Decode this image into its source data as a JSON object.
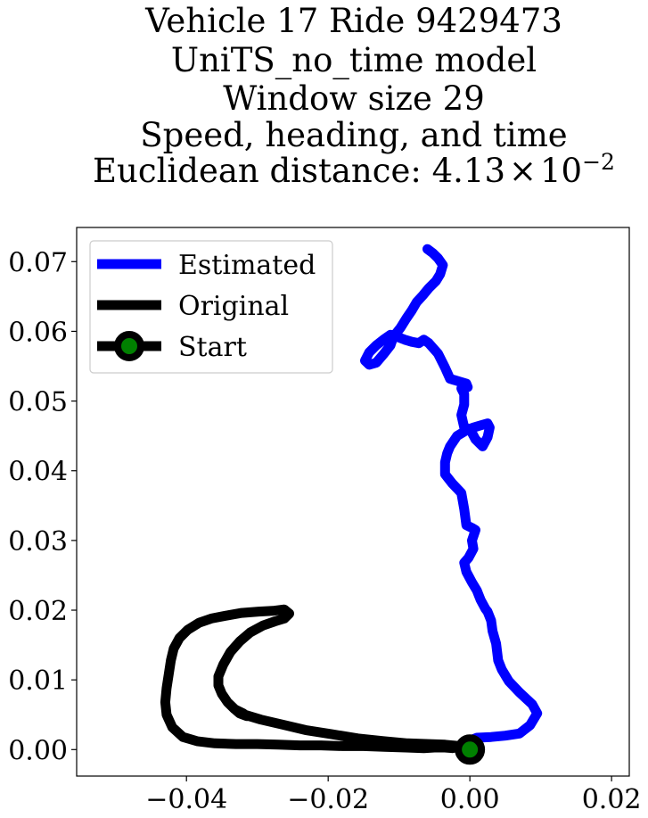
{
  "chart_data": {
    "type": "line",
    "title_lines": [
      "Vehicle 17 Ride 9429473",
      "UniTS_no_time model",
      "Window size 29",
      "Speed, heading, and time"
    ],
    "distance_label": {
      "prefix": "Euclidean distance: ",
      "mantissa": "4.13",
      "times": "×",
      "base": "10",
      "exponent": "−2"
    },
    "xlabel": "",
    "ylabel": "",
    "xlim": [
      -0.0555,
      0.0225
    ],
    "ylim": [
      -0.0038,
      0.0749
    ],
    "x_ticks": [
      -0.04,
      -0.02,
      0.0,
      0.02
    ],
    "x_tick_labels": [
      "−0.04",
      "−0.02",
      "0.00",
      "0.02"
    ],
    "y_ticks": [
      0.0,
      0.01,
      0.02,
      0.03,
      0.04,
      0.05,
      0.06,
      0.07
    ],
    "y_tick_labels": [
      "0.00",
      "0.01",
      "0.02",
      "0.03",
      "0.04",
      "0.05",
      "0.06",
      "0.07"
    ],
    "grid": false,
    "legend": {
      "placement": "top-left",
      "entries": [
        "Estimated",
        "Original",
        "Start"
      ]
    },
    "series": [
      {
        "name": "Estimated",
        "color": "#0000ff",
        "x": [
          0.0,
          0.001,
          0.003,
          0.005,
          0.007,
          0.0085,
          0.0095,
          0.0088,
          0.007,
          0.0055,
          0.0045,
          0.004,
          0.0037,
          0.0032,
          0.003,
          0.0025,
          0.0022,
          0.0015,
          0.001,
          0.0003,
          -0.0005,
          -0.0008,
          -0.0002,
          0.0005,
          0.0003,
          0.0008,
          0.0003,
          -0.0005,
          -0.0008,
          -0.0012,
          -0.0025,
          -0.0035,
          -0.0035,
          -0.0032,
          -0.0028,
          -0.0018,
          -0.0005,
          0.0005,
          0.0015,
          0.0025,
          0.0028,
          0.0025,
          0.0018,
          0.0008,
          0.0,
          -0.0008,
          -0.0012,
          -0.0008,
          -0.0008,
          -0.0012,
          -0.0003,
          -0.0005,
          -0.0015,
          -0.0028,
          -0.0035,
          -0.0045,
          -0.0058,
          -0.0065,
          -0.0072,
          -0.0082,
          -0.0092,
          -0.0102,
          -0.0112,
          -0.0122,
          -0.0132,
          -0.0142,
          -0.0148,
          -0.0142,
          -0.0132,
          -0.0122,
          -0.0112,
          -0.0108,
          -0.0098,
          -0.009,
          -0.0082,
          -0.0075,
          -0.0066,
          -0.0058,
          -0.0048,
          -0.0042,
          -0.0038,
          -0.0045,
          -0.0052,
          -0.006
        ],
        "y": [
          0.0013,
          0.0017,
          0.0018,
          0.002,
          0.0023,
          0.0035,
          0.0052,
          0.0065,
          0.0082,
          0.0098,
          0.0115,
          0.0128,
          0.0152,
          0.017,
          0.0185,
          0.0198,
          0.0202,
          0.0215,
          0.0228,
          0.024,
          0.0255,
          0.0268,
          0.0275,
          0.0288,
          0.03,
          0.0315,
          0.0318,
          0.0322,
          0.0345,
          0.0368,
          0.0382,
          0.0395,
          0.0412,
          0.0425,
          0.0435,
          0.045,
          0.0458,
          0.0462,
          0.0465,
          0.0468,
          0.0462,
          0.0448,
          0.0435,
          0.0445,
          0.046,
          0.0462,
          0.048,
          0.0495,
          0.051,
          0.0518,
          0.052,
          0.0525,
          0.0528,
          0.0532,
          0.0548,
          0.0568,
          0.0583,
          0.0588,
          0.0583,
          0.0585,
          0.0588,
          0.0592,
          0.0595,
          0.0588,
          0.058,
          0.057,
          0.0558,
          0.0552,
          0.0555,
          0.0567,
          0.058,
          0.0592,
          0.0605,
          0.0618,
          0.063,
          0.0642,
          0.0652,
          0.0662,
          0.0672,
          0.0682,
          0.0695,
          0.0705,
          0.0712,
          0.0718
        ]
      },
      {
        "name": "Original",
        "color": "#000000",
        "x": [
          0.0,
          -0.001,
          -0.002,
          -0.0025,
          -0.0035,
          -0.005,
          -0.0065,
          -0.009,
          -0.012,
          -0.015,
          -0.018,
          -0.021,
          -0.024,
          -0.027,
          -0.03,
          -0.033,
          -0.036,
          -0.0385,
          -0.0405,
          -0.042,
          -0.0428,
          -0.043,
          -0.0428,
          -0.0425,
          -0.0422,
          -0.0418,
          -0.041,
          -0.0398,
          -0.0382,
          -0.0365,
          -0.0345,
          -0.0322,
          -0.0298,
          -0.0278,
          -0.0262,
          -0.0255,
          -0.0262,
          -0.0275,
          -0.0292,
          -0.031,
          -0.0325,
          -0.0338,
          -0.0348,
          -0.0355,
          -0.0355,
          -0.035,
          -0.0342,
          -0.0332,
          -0.032,
          -0.0315,
          -0.0325,
          -0.0332,
          -0.0318,
          -0.0295,
          -0.0265,
          -0.0232,
          -0.0195,
          -0.0158,
          -0.0122,
          -0.0088,
          -0.0058,
          -0.0035,
          -0.0015,
          0.0
        ],
        "y": [
          0.0002,
          0.0003,
          0.0003,
          0.0002,
          0.0003,
          0.0003,
          0.0002,
          0.0003,
          0.0004,
          0.0005,
          0.0005,
          0.0006,
          0.0006,
          0.0007,
          0.0008,
          0.0008,
          0.0009,
          0.0012,
          0.0018,
          0.0032,
          0.005,
          0.0068,
          0.0088,
          0.0108,
          0.0128,
          0.0145,
          0.016,
          0.0172,
          0.0182,
          0.0188,
          0.0192,
          0.0196,
          0.0198,
          0.0199,
          0.0201,
          0.0195,
          0.0188,
          0.0184,
          0.0178,
          0.0168,
          0.0155,
          0.014,
          0.0122,
          0.0105,
          0.0092,
          0.008,
          0.0068,
          0.0058,
          0.0052,
          0.0048,
          0.0052,
          0.0058,
          0.005,
          0.0043,
          0.0036,
          0.0028,
          0.0022,
          0.0016,
          0.0012,
          0.0009,
          0.0008,
          0.0007,
          0.0005,
          0.0002
        ]
      }
    ],
    "start_point": {
      "name": "Start",
      "x": 0.0,
      "y": 0.0,
      "marker_color": "#008000",
      "edge_color": "#000000"
    }
  }
}
